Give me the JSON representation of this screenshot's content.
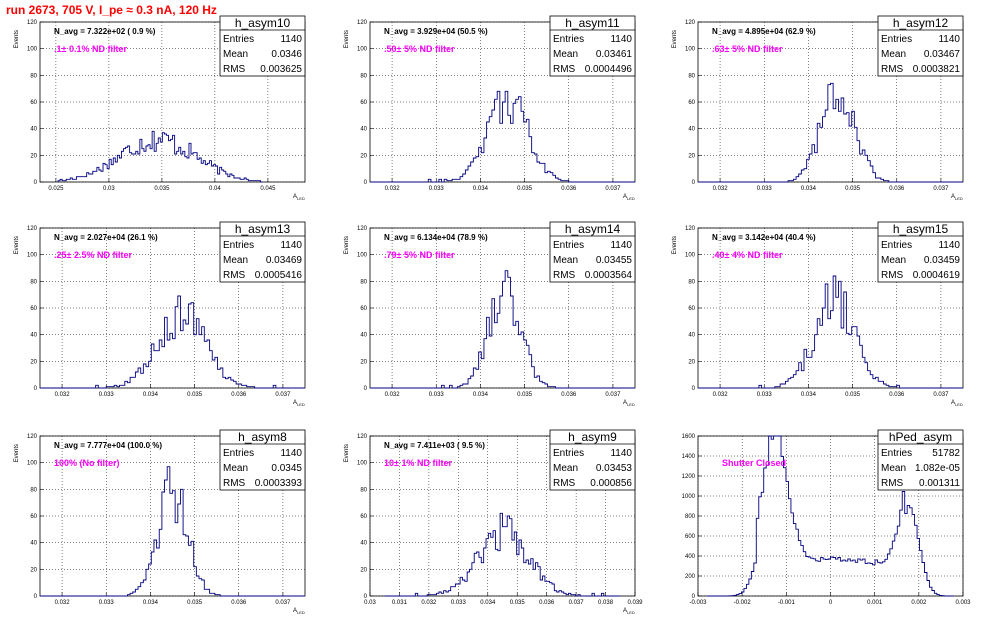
{
  "page": {
    "title": "run 2673,   705 V, I_pe ≈ 0.3 nA, 120 Hz"
  },
  "chart_data": [
    {
      "type": "bar",
      "name": "h_asym10",
      "navg": "N_avg = 7.322e+02 ( 0.9 %)",
      "filter": ".1± 0.1% ND filter",
      "stats": {
        "Entries": "1140",
        "Mean": "0.0346",
        "RMS": "0.003625"
      },
      "xlabel": "A_LED",
      "ylabel": "Events",
      "xlim": [
        0.0235,
        0.0485
      ],
      "ylim": [
        0,
        120
      ],
      "xticks": [
        0.025,
        0.03,
        0.035,
        0.04,
        0.045
      ],
      "xtick_labels": [
        "0.025",
        "0.03",
        "0.035",
        "0.04",
        "0.045"
      ],
      "yticks": [
        0,
        20,
        40,
        60,
        80,
        100,
        120
      ],
      "gen": {
        "mean": 0.0346,
        "sigma": 0.0036,
        "peak": 32,
        "bins": 100,
        "lo": 0.0252,
        "hi": 0.0445
      }
    },
    {
      "type": "bar",
      "name": "h_asym11",
      "navg": "N_avg = 3.929e+04 (50.5 %)",
      "filter": ".50± 5% ND filter",
      "stats": {
        "Entries": "1140",
        "Mean": "0.03461",
        "RMS": "0.0004496"
      },
      "xlabel": "A_LED",
      "ylabel": "Events",
      "xlim": [
        0.0315,
        0.0375
      ],
      "ylim": [
        0,
        120
      ],
      "xticks": [
        0.032,
        0.033,
        0.034,
        0.035,
        0.036,
        0.037
      ],
      "xtick_labels": [
        "0.032",
        "0.033",
        "0.034",
        "0.035",
        "0.036",
        "0.037"
      ],
      "yticks": [
        0,
        20,
        40,
        60,
        80,
        100,
        120
      ],
      "gen": {
        "mean": 0.03461,
        "sigma": 0.00045,
        "peak": 62,
        "bins": 100,
        "lo": 0.0315,
        "hi": 0.0375
      }
    },
    {
      "type": "bar",
      "name": "h_asym12",
      "navg": "N_avg = 4.895e+04 (62.9 %)",
      "filter": ".63± 5% ND filter",
      "stats": {
        "Entries": "1140",
        "Mean": "0.03467",
        "RMS": "0.0003821"
      },
      "xlabel": "A_LED",
      "ylabel": "Events",
      "xlim": [
        0.0315,
        0.0375
      ],
      "ylim": [
        0,
        120
      ],
      "xticks": [
        0.032,
        0.033,
        0.034,
        0.035,
        0.036,
        0.037
      ],
      "xtick_labels": [
        "0.032",
        "0.033",
        "0.034",
        "0.035",
        "0.036",
        "0.037"
      ],
      "yticks": [
        0,
        20,
        40,
        60,
        80,
        100,
        120
      ],
      "gen": {
        "mean": 0.03467,
        "sigma": 0.00038,
        "peak": 68,
        "bins": 100,
        "lo": 0.0315,
        "hi": 0.0375
      }
    },
    {
      "type": "bar",
      "name": "h_asym13",
      "navg": "N_avg = 2.027e+04 (26.1 %)",
      "filter": ".25± 2.5% ND filter",
      "stats": {
        "Entries": "1140",
        "Mean": "0.03469",
        "RMS": "0.0005416"
      },
      "xlabel": "A_LED",
      "ylabel": "Events",
      "xlim": [
        0.0315,
        0.0375
      ],
      "ylim": [
        0,
        120
      ],
      "xticks": [
        0.032,
        0.033,
        0.034,
        0.035,
        0.036,
        0.037
      ],
      "xtick_labels": [
        "0.032",
        "0.033",
        "0.034",
        "0.035",
        "0.036",
        "0.037"
      ],
      "yticks": [
        0,
        20,
        40,
        60,
        80,
        100,
        120
      ],
      "gen": {
        "mean": 0.03469,
        "sigma": 0.00054,
        "peak": 55,
        "bins": 100,
        "lo": 0.0315,
        "hi": 0.0375
      }
    },
    {
      "type": "bar",
      "name": "h_asym14",
      "navg": "N_avg = 6.134e+04 (78.9 %)",
      "filter": ".79± 5% ND filter",
      "stats": {
        "Entries": "1140",
        "Mean": "0.03455",
        "RMS": "0.0003564"
      },
      "xlabel": "A_LED",
      "ylabel": "Events",
      "xlim": [
        0.0315,
        0.0375
      ],
      "ylim": [
        0,
        120
      ],
      "xticks": [
        0.032,
        0.033,
        0.034,
        0.035,
        0.036,
        0.037
      ],
      "xtick_labels": [
        "0.032",
        "0.033",
        "0.034",
        "0.035",
        "0.036",
        "0.037"
      ],
      "yticks": [
        0,
        20,
        40,
        60,
        80,
        100,
        120
      ],
      "gen": {
        "mean": 0.03455,
        "sigma": 0.00036,
        "peak": 72,
        "bins": 100,
        "lo": 0.0315,
        "hi": 0.0375
      }
    },
    {
      "type": "bar",
      "name": "h_asym15",
      "navg": "N_avg = 3.142e+04 (40.4 %)",
      "filter": ".40± 4% ND filter",
      "stats": {
        "Entries": "1140",
        "Mean": "0.03459",
        "RMS": "0.0004619"
      },
      "xlabel": "A_LED",
      "ylabel": "Events",
      "xlim": [
        0.0315,
        0.0375
      ],
      "ylim": [
        0,
        120
      ],
      "xticks": [
        0.032,
        0.033,
        0.034,
        0.035,
        0.036,
        0.037
      ],
      "xtick_labels": [
        "0.032",
        "0.033",
        "0.034",
        "0.035",
        "0.036",
        "0.037"
      ],
      "yticks": [
        0,
        20,
        40,
        60,
        80,
        100,
        120
      ],
      "gen": {
        "mean": 0.03459,
        "sigma": 0.00046,
        "peak": 65,
        "bins": 100,
        "lo": 0.0315,
        "hi": 0.0375
      }
    },
    {
      "type": "bar",
      "name": "h_asym8",
      "navg": "N_avg = 7.777e+04 (100.0 %)",
      "filter": "100% (No filter)",
      "stats": {
        "Entries": "1140",
        "Mean": "0.0345",
        "RMS": "0.0003393"
      },
      "xlabel": "A_LED",
      "ylabel": "Events",
      "xlim": [
        0.0315,
        0.0375
      ],
      "ylim": [
        0,
        120
      ],
      "xticks": [
        0.032,
        0.033,
        0.034,
        0.035,
        0.036,
        0.037
      ],
      "xtick_labels": [
        "0.032",
        "0.033",
        "0.034",
        "0.035",
        "0.036",
        "0.037"
      ],
      "yticks": [
        0,
        20,
        40,
        60,
        80,
        100,
        120
      ],
      "gen": {
        "mean": 0.0345,
        "sigma": 0.00034,
        "peak": 80,
        "bins": 100,
        "lo": 0.0315,
        "hi": 0.0375
      }
    },
    {
      "type": "bar",
      "name": "h_asym9",
      "navg": "N_avg = 7.411e+03 ( 9.5 %)",
      "filter": "10± 1% ND filter",
      "stats": {
        "Entries": "1140",
        "Mean": "0.03453",
        "RMS": "0.000856"
      },
      "xlabel": "A_LED",
      "ylabel": "Events",
      "xlim": [
        0.03,
        0.039
      ],
      "ylim": [
        0,
        120
      ],
      "xticks": [
        0.03,
        0.031,
        0.032,
        0.033,
        0.034,
        0.035,
        0.036,
        0.037,
        0.038,
        0.039
      ],
      "xtick_labels": [
        "0.03",
        "0.031",
        "0.032",
        "0.033",
        "0.034",
        "0.035",
        "0.036",
        "0.037",
        "0.038",
        "0.039"
      ],
      "yticks": [
        0,
        20,
        40,
        60,
        80,
        100,
        120
      ],
      "gen": {
        "mean": 0.03453,
        "sigma": 0.00086,
        "peak": 48,
        "bins": 100,
        "lo": 0.0305,
        "hi": 0.0385
      }
    },
    {
      "type": "bar",
      "name": "hPed_asym",
      "navg": "",
      "filter": "Shutter Closed",
      "stats": {
        "Entries": "51782",
        "Mean": "1.082e-05",
        "RMS": "0.001311"
      },
      "xlabel": "",
      "ylabel": "",
      "xlim": [
        -0.003,
        0.003
      ],
      "ylim": [
        0,
        1600
      ],
      "xticks": [
        -0.003,
        -0.002,
        -0.001,
        0,
        0.001,
        0.002,
        0.003
      ],
      "xtick_labels": [
        "-0.003",
        "-0.002",
        "-0.001",
        "0",
        "0.001",
        "0.002",
        "0.003"
      ],
      "yticks": [
        0,
        200,
        400,
        600,
        800,
        1000,
        1200,
        1400,
        1600
      ],
      "gen": {
        "type": "bimodal",
        "bins": 100,
        "lo": -0.0028,
        "hi": 0.0028
      }
    }
  ]
}
